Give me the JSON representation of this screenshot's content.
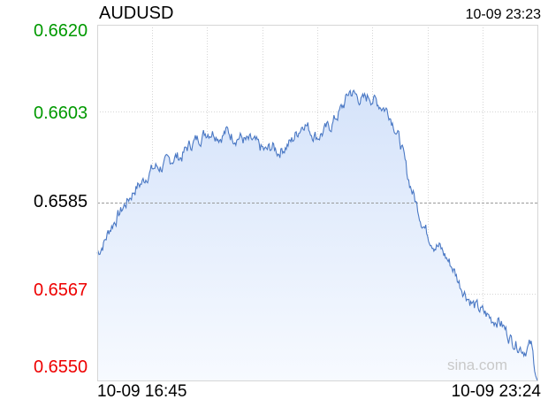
{
  "header": {
    "symbol": "AUDUSD",
    "timestamp": "10-09 23:23"
  },
  "colors": {
    "up": "#009900",
    "neutral": "#000000",
    "down": "#ee0000",
    "line": "#4a78c4",
    "fill_top": "#d5e3fa",
    "fill_bottom": "#f7faff",
    "grid": "#d6d6d6"
  },
  "watermark": "sina.com",
  "chart_data": {
    "type": "area",
    "title": "AUDUSD",
    "ylim": [
      0.655,
      0.662
    ],
    "yticks": [
      {
        "label": "0.6620",
        "value": 0.662,
        "tone": "up"
      },
      {
        "label": "0.6603",
        "value": 0.6603,
        "tone": "up"
      },
      {
        "label": "0.6585",
        "value": 0.6585,
        "tone": "neutral"
      },
      {
        "label": "0.6567",
        "value": 0.6567,
        "tone": "down"
      },
      {
        "label": "0.6550",
        "value": 0.655,
        "tone": "down"
      }
    ],
    "reference": 0.6585,
    "xlabels": [
      "10-09 16:45",
      "10-09 23:24"
    ],
    "grid": true,
    "series": [
      {
        "values": [
          0.6575,
          0.6577,
          0.658,
          0.6582,
          0.6584,
          0.6586,
          0.6588,
          0.6589,
          0.6591,
          0.6592,
          0.6592,
          0.6593,
          0.6594,
          0.6594,
          0.6596,
          0.6597,
          0.6598,
          0.6599,
          0.6599,
          0.6598,
          0.6599,
          0.6598,
          0.6598,
          0.6597,
          0.6597,
          0.6596,
          0.6595,
          0.6596,
          0.6595,
          0.6596,
          0.6597,
          0.6599,
          0.6601,
          0.6599,
          0.6598,
          0.6599,
          0.66,
          0.6602,
          0.6604,
          0.6607,
          0.6606,
          0.6605,
          0.6606,
          0.6605,
          0.6604,
          0.6603,
          0.66,
          0.6596,
          0.659,
          0.6586,
          0.6582,
          0.6579,
          0.6577,
          0.6576,
          0.6574,
          0.6572,
          0.6569,
          0.6567,
          0.6565,
          0.6564,
          0.6563,
          0.6562,
          0.6562,
          0.656,
          0.6558,
          0.6557,
          0.6556,
          0.6557,
          0.655
        ]
      }
    ]
  }
}
